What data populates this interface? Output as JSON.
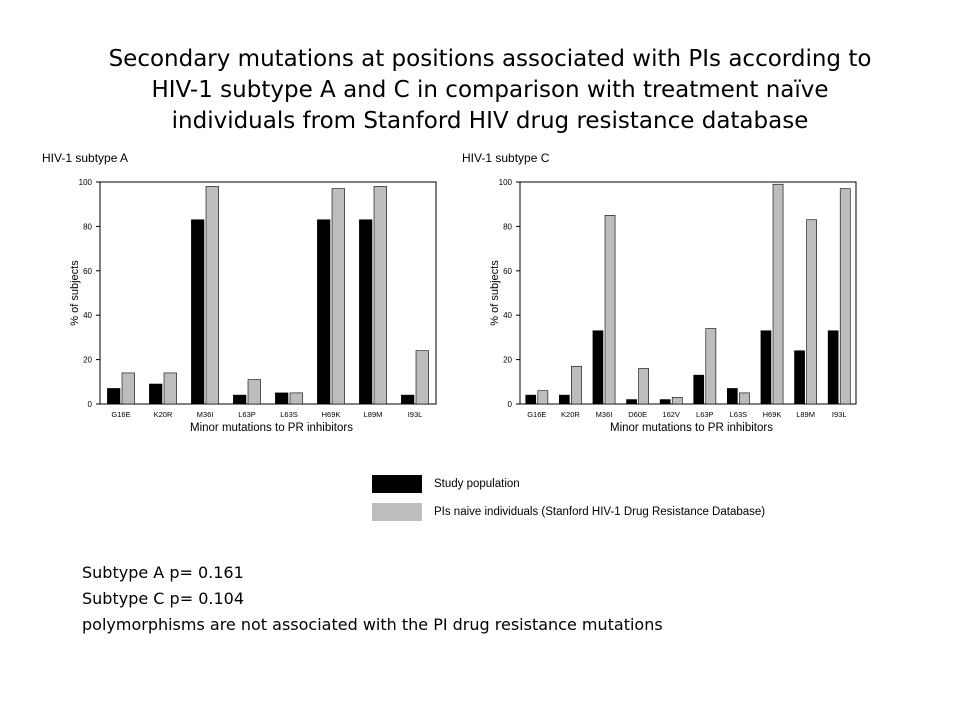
{
  "slide": {
    "title": "Secondary mutations at positions associated with PIs according to HIV-1 subtype A and C in comparison with treatment naïve individuals  from Stanford HIV drug resistance database"
  },
  "colors": {
    "study": "#000000",
    "naive": "#bdbdbd"
  },
  "chart_data": [
    {
      "type": "bar",
      "title": "HIV-1 subtype A",
      "xlabel": "Minor mutations  to PR inhibitors",
      "ylabel": "% of subjects",
      "ylim": [
        0,
        100
      ],
      "yticks": [
        "0",
        "20",
        "40",
        "60",
        "80",
        "100"
      ],
      "grid": false,
      "legend": "bottom",
      "categories": [
        "G16E",
        "K20R",
        "M36I",
        "L63P",
        "L63S",
        "H69K",
        "L89M",
        "I93L"
      ],
      "series": [
        {
          "name": "Study population",
          "values": [
            7,
            9,
            83,
            4,
            5,
            83,
            83,
            4
          ]
        },
        {
          "name": "PIs naive individuals (Stanford HIV-1 Drug Resistance Database)",
          "values": [
            14,
            14,
            98,
            11,
            5,
            97,
            98,
            24
          ]
        }
      ]
    },
    {
      "type": "bar",
      "title": "HIV-1 subtype C",
      "xlabel": "Minor mutations  to PR inhibitors",
      "ylabel": "% of subjects",
      "ylim": [
        0,
        100
      ],
      "yticks": [
        "0",
        "20",
        "40",
        "60",
        "80",
        "100"
      ],
      "grid": false,
      "legend": "bottom",
      "categories": [
        "G16E",
        "K20R",
        "M36I",
        "D60E",
        "162V",
        "L63P",
        "L63S",
        "H69K",
        "L89M",
        "I93L"
      ],
      "series": [
        {
          "name": "Study population",
          "values": [
            4,
            4,
            33,
            2,
            2,
            13,
            7,
            33,
            24,
            33
          ]
        },
        {
          "name": "PIs naive individuals (Stanford HIV-1 Drug Resistance Database)",
          "values": [
            6,
            17,
            85,
            16,
            3,
            34,
            5,
            99,
            83,
            97
          ]
        }
      ]
    }
  ],
  "legend": {
    "items": [
      "Study population",
      "PIs naive individuals (Stanford HIV-1 Drug Resistance Database)"
    ]
  },
  "notes": {
    "line1": "Subtype A  p= 0.161",
    "line2": "Subtype C p= 0.104",
    "line3": "polymorphisms are not associated with the PI drug resistance mutations"
  }
}
